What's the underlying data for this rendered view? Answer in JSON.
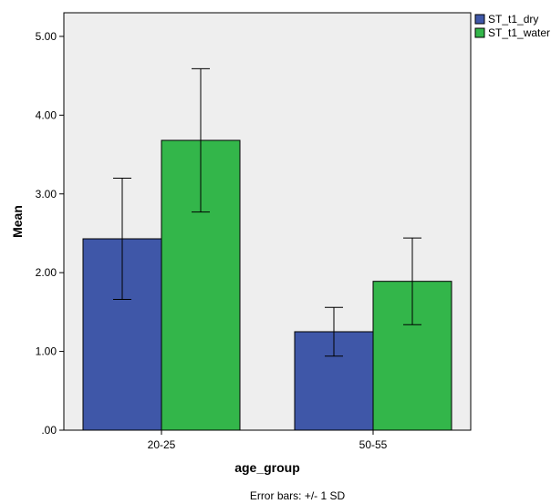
{
  "chart_data": {
    "type": "bar",
    "categories": [
      "20-25",
      "50-55"
    ],
    "series": [
      {
        "name": "ST_t1_dry",
        "values": [
          2.43,
          1.25
        ],
        "error_plus_minus": [
          0.77,
          0.31
        ],
        "color": "#3f57a8"
      },
      {
        "name": "ST_t1_water",
        "values": [
          3.68,
          1.89
        ],
        "error_plus_minus": [
          0.91,
          0.55
        ],
        "color": "#33b64a"
      }
    ],
    "title": "",
    "xlabel": "age_group",
    "ylabel": "Mean",
    "ylim": [
      0,
      5.3
    ],
    "yticks": [
      {
        "value": 0,
        "label": ".00"
      },
      {
        "value": 1,
        "label": "1.00"
      },
      {
        "value": 2,
        "label": "2.00"
      },
      {
        "value": 3,
        "label": "3.00"
      },
      {
        "value": 4,
        "label": "4.00"
      },
      {
        "value": 5,
        "label": "5.00"
      }
    ],
    "legend_position": "top-right",
    "plot_background": "#eeeeee",
    "grid": false,
    "note": "Error bars: +/- 1 SD"
  }
}
